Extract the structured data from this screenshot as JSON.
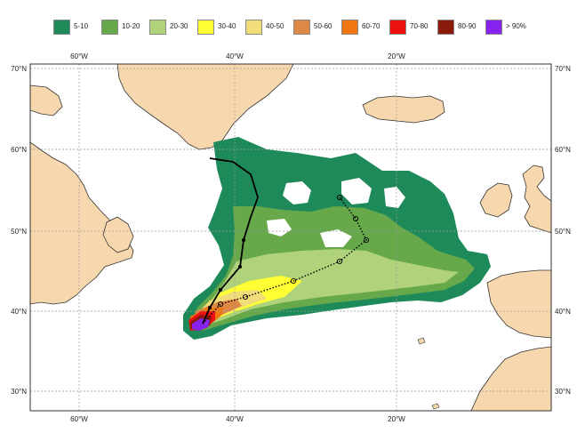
{
  "legend": [
    {
      "label": "5-10",
      "color": "#1e8a5a"
    },
    {
      "label": "10-20",
      "color": "#66a84a"
    },
    {
      "label": "20-30",
      "color": "#afd27a"
    },
    {
      "label": "30-40",
      "color": "#ffff33"
    },
    {
      "label": "40-50",
      "color": "#f0dc78"
    },
    {
      "label": "50-60",
      "color": "#dd8844"
    },
    {
      "label": "60-70",
      "color": "#ee7711"
    },
    {
      "label": "70-80",
      "color": "#ee1111"
    },
    {
      "label": "80-90",
      "color": "#8b1a0a"
    },
    {
      "label": "> 90%",
      "color": "#8822ee"
    }
  ],
  "colors": {
    "land": "#f7d7ad",
    "ocean": "#ffffff",
    "coast": "#333333",
    "grid": "#999999"
  },
  "axes": {
    "lon_ticks_top": [
      "60°W",
      "40°W",
      "20°W"
    ],
    "lon_ticks_bottom": [
      "60°W",
      "40°W",
      "20°W"
    ],
    "lat_ticks_left": [
      "70°N",
      "60°N",
      "50°N",
      "40°N",
      "30°N"
    ],
    "lat_ticks_right": [
      "70°N",
      "60°N",
      "50°N",
      "40°N",
      "30°N"
    ]
  }
}
